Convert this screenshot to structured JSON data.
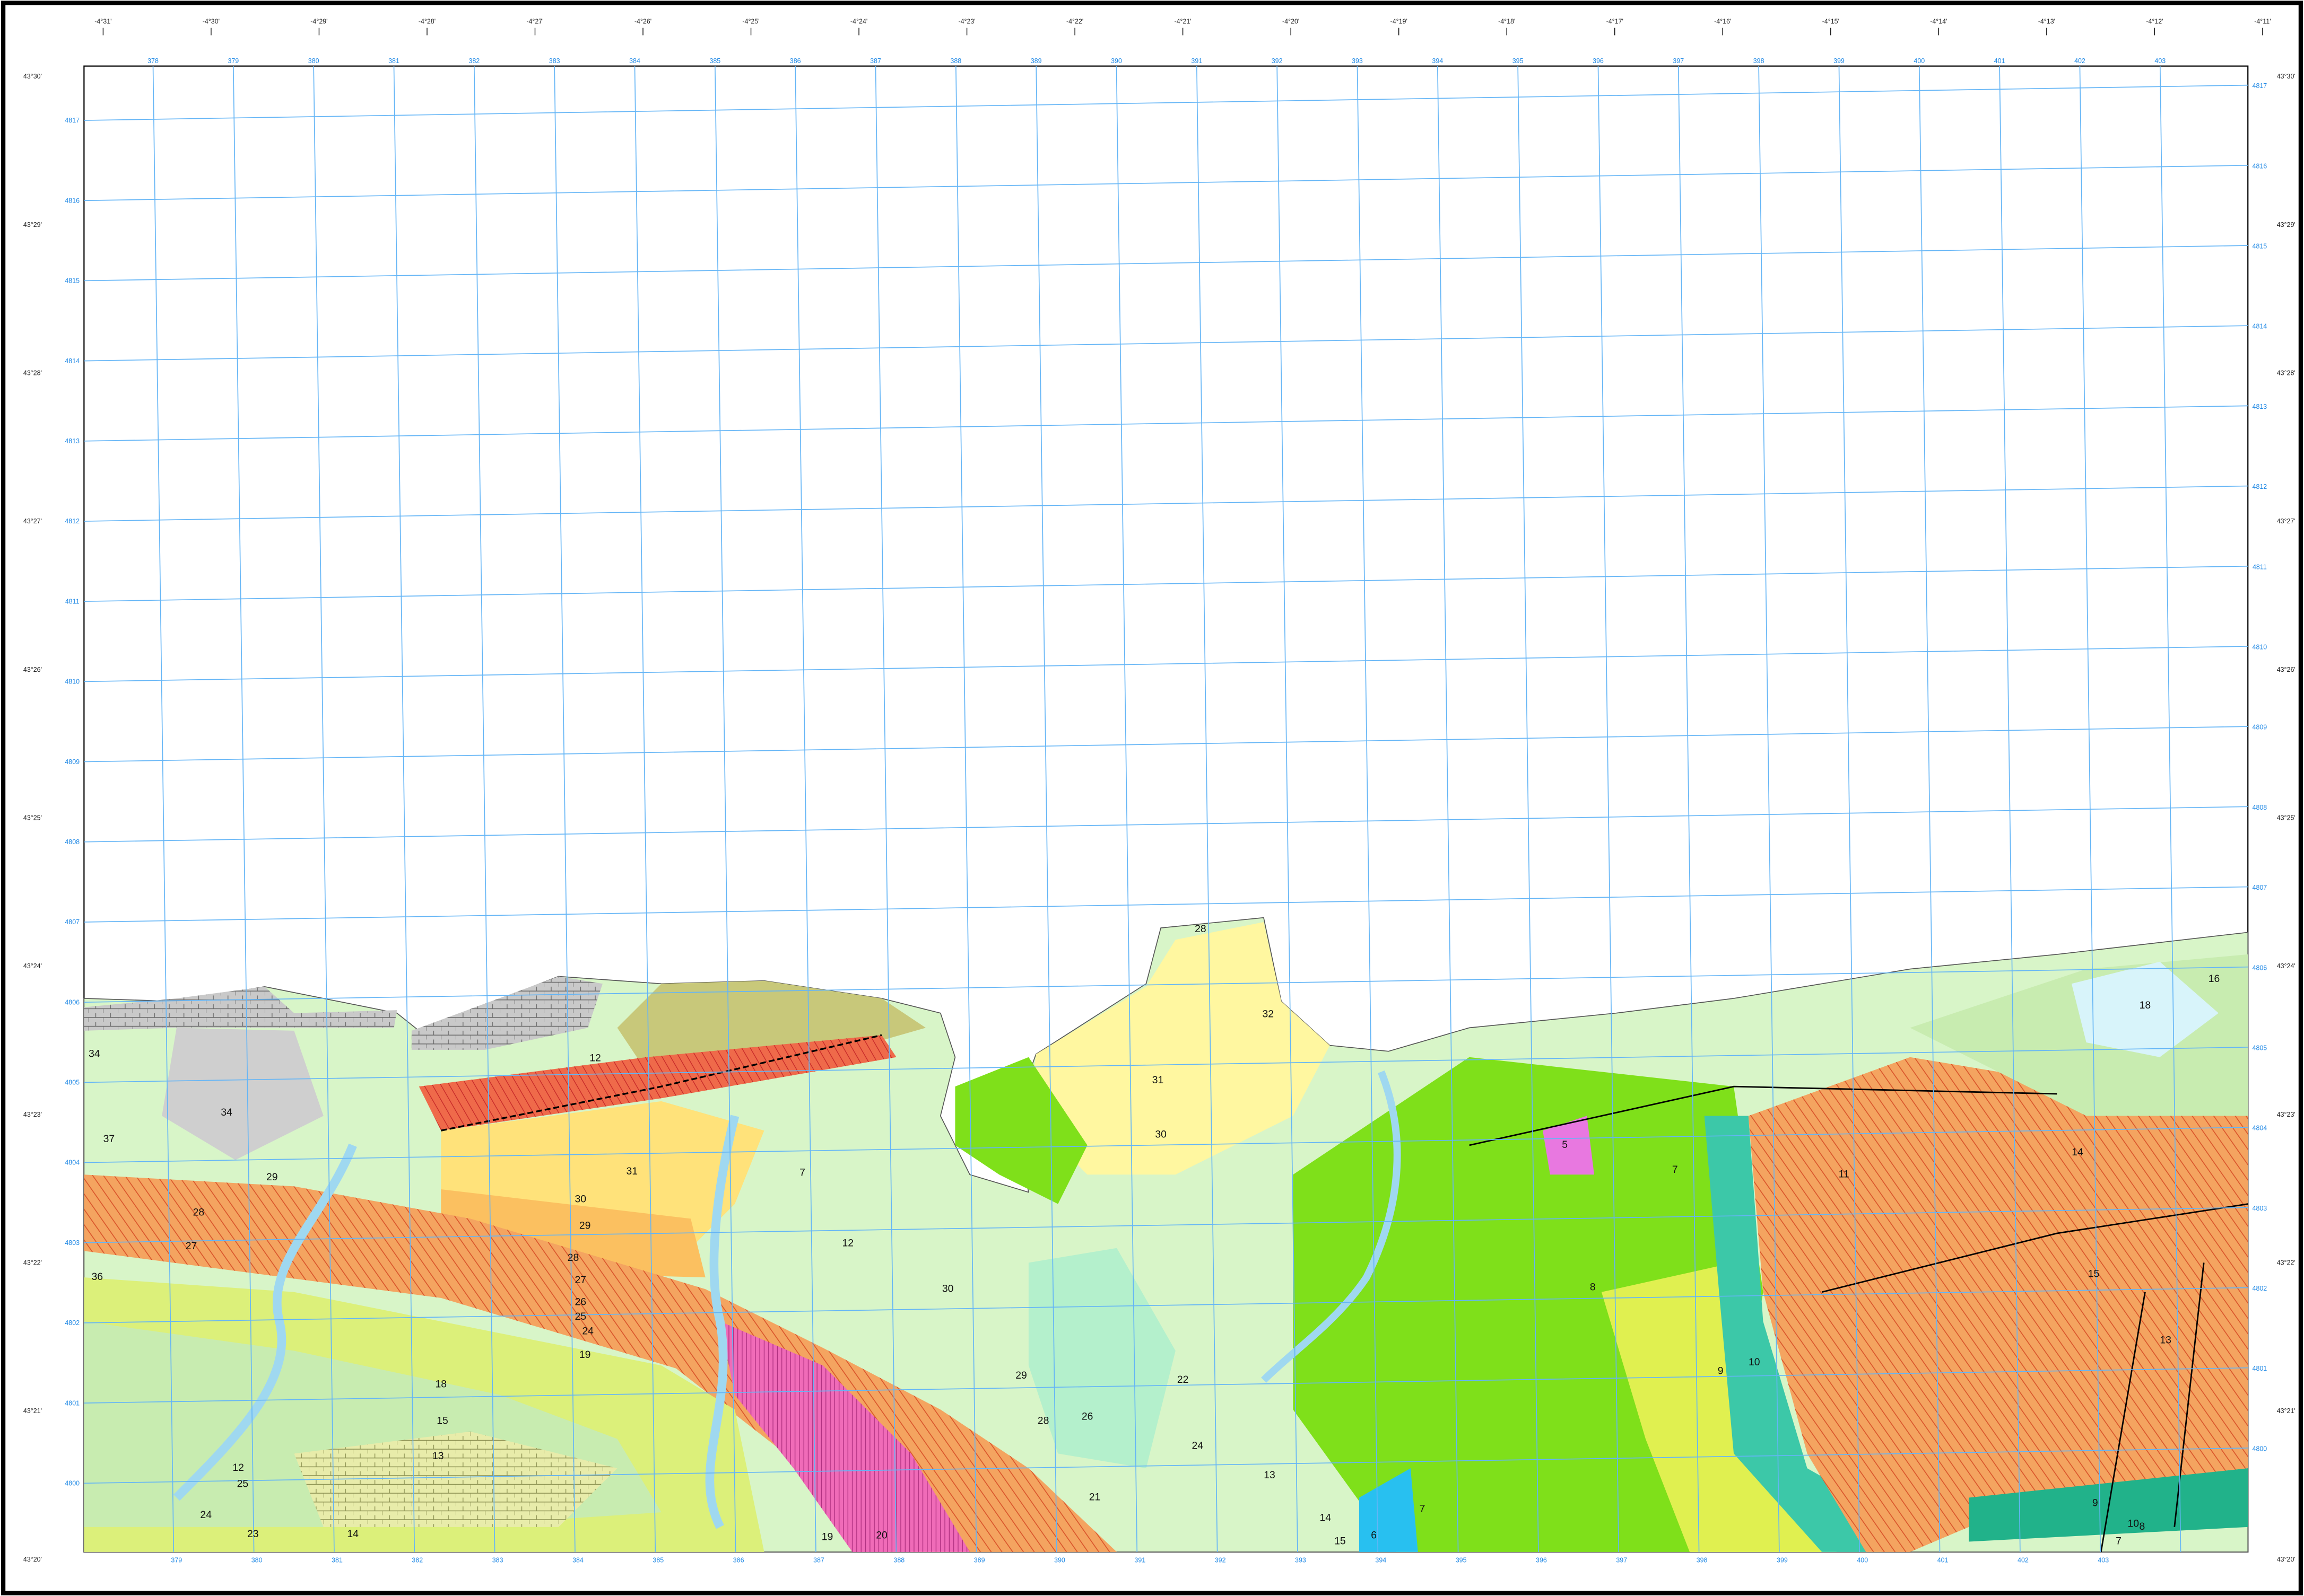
{
  "map": {
    "longitude_labels": [
      "-4°31'",
      "-4°30'",
      "-4°29'",
      "-4°28'",
      "-4°27'",
      "-4°26'",
      "-4°25'",
      "-4°24'",
      "-4°23'",
      "-4°22'",
      "-4°21'",
      "-4°20'",
      "-4°19'",
      "-4°18'",
      "-4°17'",
      "-4°16'",
      "-4°15'",
      "-4°14'",
      "-4°13'",
      "-4°12'",
      "-4°11'"
    ],
    "latitude_labels": [
      "43°30'",
      "43°29'",
      "43°28'",
      "43°27'",
      "43°26'",
      "43°25'",
      "43°24'",
      "43°23'",
      "43°22'",
      "43°21'",
      "43°20'"
    ],
    "easting_labels": [
      "378",
      "379",
      "380",
      "381",
      "382",
      "383",
      "384",
      "385",
      "386",
      "387",
      "388",
      "389",
      "390",
      "391",
      "392",
      "393",
      "394",
      "395",
      "396",
      "397",
      "398",
      "399",
      "400",
      "401",
      "402",
      "403"
    ],
    "northing_labels": [
      "4817",
      "4816",
      "4815",
      "4814",
      "4813",
      "4812",
      "4811",
      "4810",
      "4809",
      "4808",
      "4807",
      "4806",
      "4805",
      "4804",
      "4803",
      "4802",
      "4801",
      "4800"
    ],
    "unit_labels": [
      "34",
      "37",
      "34",
      "36",
      "12",
      "31",
      "30",
      "29",
      "28",
      "27",
      "26",
      "25",
      "24",
      "19",
      "18",
      "15",
      "13",
      "12",
      "14",
      "29",
      "28",
      "27",
      "25",
      "24",
      "23",
      "20",
      "19",
      "30",
      "29",
      "28",
      "26",
      "24",
      "22",
      "21",
      "12",
      "7",
      "30",
      "31",
      "32",
      "28",
      "15",
      "14",
      "13",
      "7",
      "5",
      "7",
      "8",
      "9",
      "10",
      "11",
      "13",
      "14",
      "15",
      "18",
      "16",
      "10",
      "9",
      "8",
      "7",
      "6"
    ]
  }
}
